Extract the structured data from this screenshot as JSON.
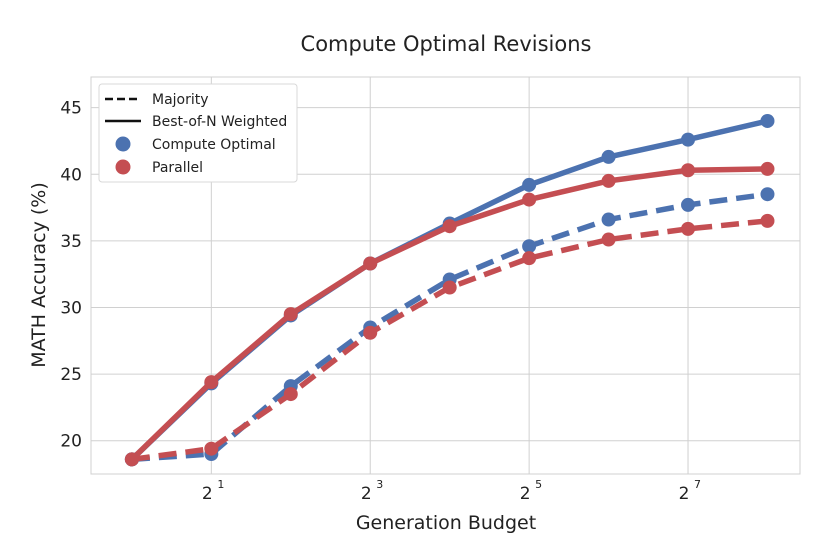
{
  "chart_data": {
    "type": "line",
    "title": "Compute Optimal Revisions",
    "xlabel": "Generation Budget",
    "ylabel": "MATH Accuracy (%)",
    "x_scale": "log2",
    "x": [
      1,
      2,
      4,
      8,
      16,
      32,
      64,
      128,
      256
    ],
    "x_ticks": [
      {
        "value": 2,
        "base": "2",
        "exp": "1"
      },
      {
        "value": 8,
        "base": "2",
        "exp": "3"
      },
      {
        "value": 32,
        "base": "2",
        "exp": "5"
      },
      {
        "value": 128,
        "base": "2",
        "exp": "7"
      }
    ],
    "xlim": [
      0.7,
      340
    ],
    "ylim": [
      17.5,
      47.3
    ],
    "y_ticks": [
      20,
      25,
      30,
      35,
      40,
      45
    ],
    "grid": true,
    "legend_position": "top-left",
    "legend": [
      {
        "label": "Majority",
        "kind": "dashed-line"
      },
      {
        "label": "Best-of-N Weighted",
        "kind": "solid-line"
      },
      {
        "label": "Compute Optimal",
        "kind": "marker",
        "color": "#4c72b0"
      },
      {
        "label": "Parallel",
        "kind": "marker",
        "color": "#c44e52"
      }
    ],
    "series": [
      {
        "name": "Compute Optimal",
        "method": "Best-of-N Weighted",
        "color": "#4c72b0",
        "dashed": false,
        "values": [
          18.6,
          24.3,
          29.4,
          33.3,
          36.3,
          39.2,
          41.3,
          42.6,
          44.0
        ]
      },
      {
        "name": "Parallel",
        "method": "Best-of-N Weighted",
        "color": "#c44e52",
        "dashed": false,
        "values": [
          18.6,
          24.4,
          29.5,
          33.3,
          36.1,
          38.1,
          39.5,
          40.3,
          40.4
        ]
      },
      {
        "name": "Compute Optimal",
        "method": "Majority",
        "color": "#4c72b0",
        "dashed": true,
        "values": [
          18.6,
          19.0,
          24.1,
          28.5,
          32.1,
          34.6,
          36.6,
          37.7,
          38.5
        ]
      },
      {
        "name": "Parallel",
        "method": "Majority",
        "color": "#c44e52",
        "dashed": true,
        "values": [
          18.6,
          19.4,
          23.5,
          28.1,
          31.5,
          33.7,
          35.1,
          35.9,
          36.5
        ]
      }
    ]
  }
}
